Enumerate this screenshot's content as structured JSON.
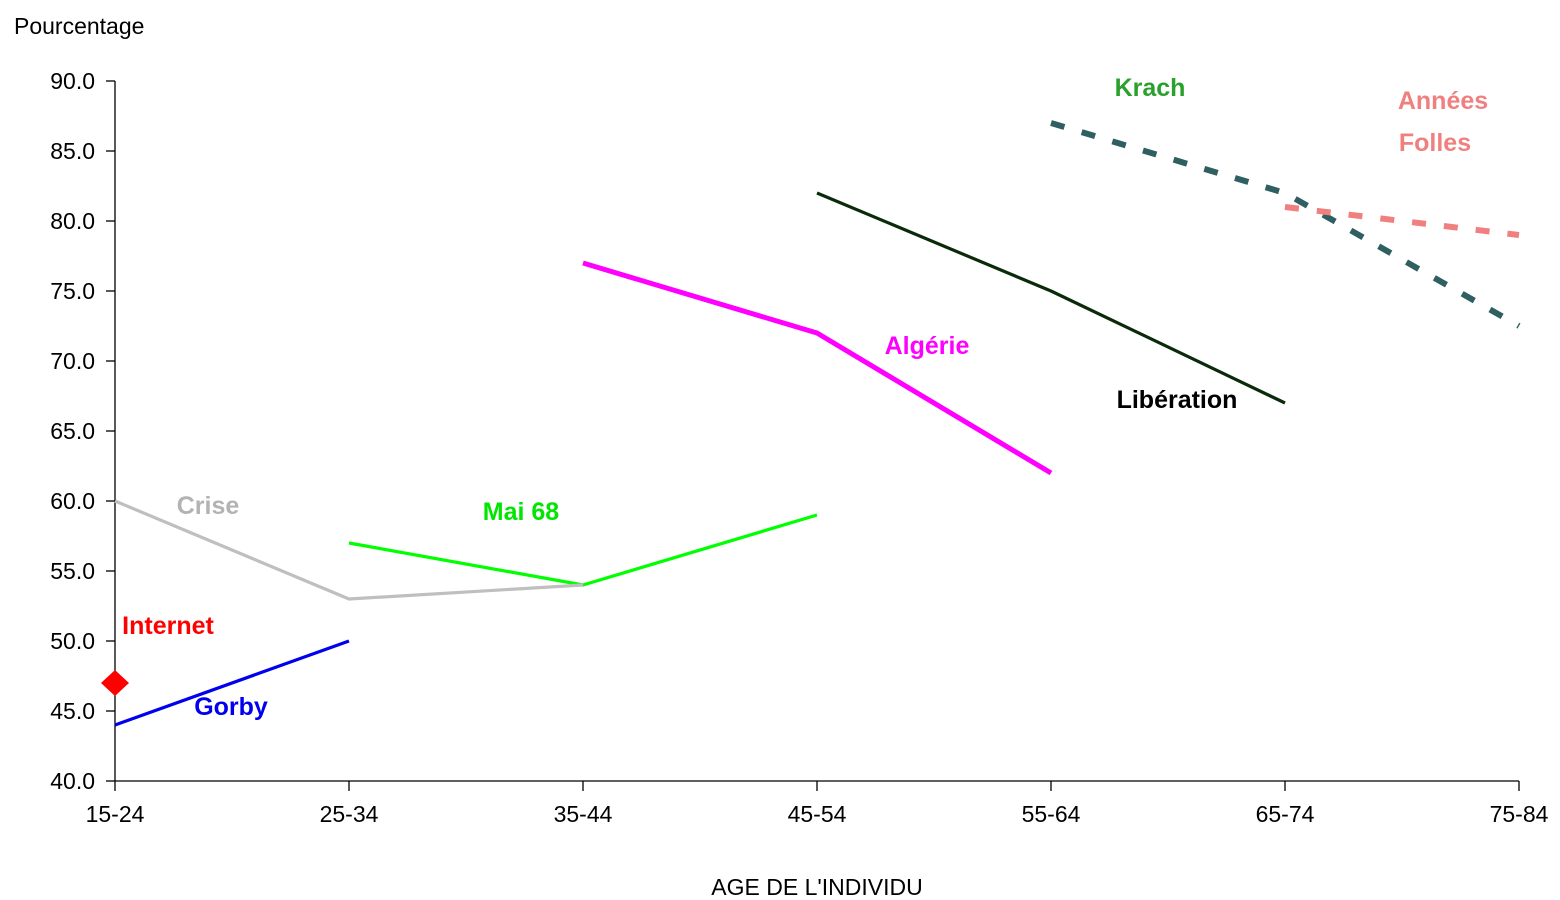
{
  "chart_data": {
    "type": "line",
    "ylabel": "Pourcentage",
    "xlabel": "AGE DE L'INDIVIDU",
    "categories": [
      "15-24",
      "25-34",
      "35-44",
      "45-54",
      "55-64",
      "65-74",
      "75-84"
    ],
    "ylim": [
      40,
      90
    ],
    "yticks": [
      "90.0",
      "85.0",
      "80.0",
      "75.0",
      "70.0",
      "65.0",
      "60.0",
      "55.0",
      "50.0",
      "45.0",
      "40.0"
    ],
    "grid": false,
    "legend": "none",
    "series": [
      {
        "name": "Krach",
        "color": "#2f5f60",
        "dashed": true,
        "label_color": "#2ca02c",
        "values": [
          null,
          null,
          null,
          null,
          87,
          82,
          72.5
        ]
      },
      {
        "name": "Années Folles",
        "color": "#f08080",
        "dashed": true,
        "label_color": "#f08080",
        "values": [
          null,
          null,
          null,
          null,
          null,
          81,
          79
        ]
      },
      {
        "name": "Libération",
        "color": "#0a2a0a",
        "dashed": false,
        "label_color": "#000000",
        "values": [
          null,
          null,
          null,
          82,
          75,
          67,
          null
        ]
      },
      {
        "name": "Algérie",
        "color": "#ff00ff",
        "dashed": false,
        "label_color": "#ff00ff",
        "values": [
          null,
          null,
          77,
          72,
          62,
          null,
          null
        ]
      },
      {
        "name": "Mai 68",
        "color": "#00ff00",
        "dashed": false,
        "label_color": "#00e600",
        "values": [
          null,
          57,
          54,
          59,
          null,
          null,
          null
        ]
      },
      {
        "name": "Crise",
        "color": "#bfbfbf",
        "dashed": false,
        "label_color": "#b3b3b3",
        "values": [
          60,
          53,
          54,
          null,
          null,
          null,
          null
        ]
      },
      {
        "name": "Gorby",
        "color": "#0000ee",
        "dashed": false,
        "label_color": "#0000ee",
        "values": [
          44,
          50,
          null,
          null,
          null,
          null,
          null
        ]
      },
      {
        "name": "Internet",
        "color": "#ff0000",
        "marker": "diamond",
        "label_color": "#ff0000",
        "values": [
          47,
          null,
          null,
          null,
          null,
          null,
          null
        ]
      }
    ],
    "annotations": [
      {
        "text": "Krach",
        "series": "Krach"
      },
      {
        "text": "Années",
        "series": "Années Folles"
      },
      {
        "text": "Folles",
        "series": "Années Folles"
      },
      {
        "text": "Libération",
        "series": "Libération"
      },
      {
        "text": "Algérie",
        "series": "Algérie"
      },
      {
        "text": "Mai 68",
        "series": "Mai 68"
      },
      {
        "text": "Crise",
        "series": "Crise"
      },
      {
        "text": "Internet",
        "series": "Internet"
      },
      {
        "text": "Gorby",
        "series": "Gorby"
      }
    ]
  }
}
